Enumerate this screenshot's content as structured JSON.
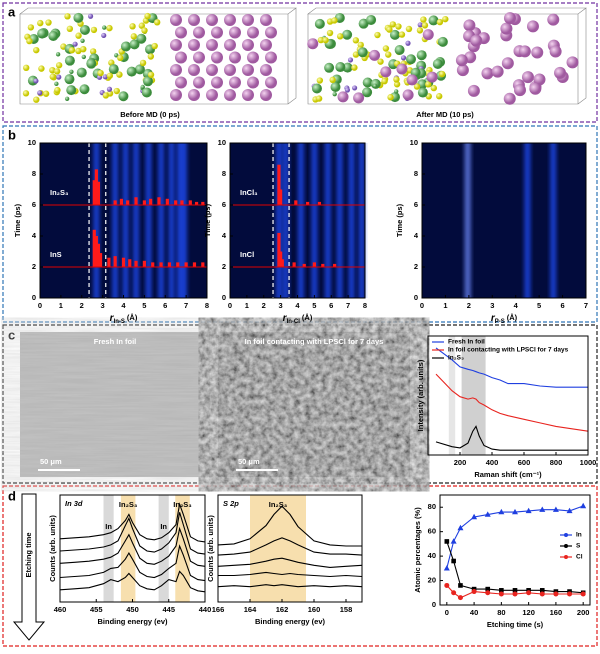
{
  "panels": {
    "a": {
      "label": "a",
      "captions": [
        "Before MD (0 ps)",
        "After MD (10 ps)"
      ]
    },
    "b": {
      "label": "b"
    },
    "c": {
      "label": "c",
      "images": [
        {
          "caption": "Fresh In foil",
          "scale": "50 μm"
        },
        {
          "caption": "In foil contacting with LPSCl for 7 days",
          "scale": "50 μm"
        }
      ]
    },
    "d": {
      "label": "d",
      "arrow": "Etching time"
    }
  },
  "chart_data": [
    {
      "type": "heatmap",
      "ylabel": "Time (ps)",
      "xlabel": {
        "symbol": "r",
        "sub": "In-S",
        "unit": "(Å)"
      },
      "xlim": [
        0,
        8
      ],
      "ylim": [
        0,
        10
      ],
      "xticks": [
        0,
        1,
        2,
        3,
        4,
        5,
        6,
        7,
        8
      ],
      "yticks": [
        0,
        2,
        4,
        6,
        8,
        10
      ],
      "density_peaks": [
        2.7,
        3.6,
        4.1,
        4.6,
        5.2,
        5.8,
        6.3,
        6.7,
        6.9
      ],
      "dashed_lines": [
        2.35,
        3.15
      ],
      "markers": [
        {
          "label": "In₂S₃",
          "time": 6,
          "bars": {
            "x": [
              2.6,
              2.7,
              2.8,
              3.6,
              3.9,
              4.2,
              4.6,
              5.0,
              5.3,
              5.7,
              6.1,
              6.5,
              6.8,
              7.2,
              7.5,
              7.8
            ],
            "heights": [
              1.6,
              2.3,
              1.5,
              0.3,
              0.4,
              0.3,
              0.5,
              0.3,
              0.4,
              0.5,
              0.4,
              0.3,
              0.3,
              0.3,
              0.2,
              0.2
            ]
          }
        },
        {
          "label": "InS",
          "time": 2,
          "bars": {
            "x": [
              2.6,
              2.7,
              2.8,
              2.9,
              3.3,
              3.6,
              4.0,
              4.3,
              4.6,
              5.0,
              5.4,
              5.8,
              6.2,
              6.6,
              7.0,
              7.4,
              7.8
            ],
            "heights": [
              2.4,
              2.0,
              1.5,
              0.9,
              0.6,
              0.7,
              0.6,
              0.5,
              0.4,
              0.4,
              0.3,
              0.3,
              0.3,
              0.3,
              0.3,
              0.3,
              0.3
            ]
          }
        }
      ]
    },
    {
      "type": "heatmap",
      "ylabel": "Time (ps)",
      "xlabel": {
        "symbol": "r",
        "sub": "In-Cl",
        "unit": "(Å)"
      },
      "xlim": [
        0,
        8
      ],
      "ylim": [
        0,
        10
      ],
      "xticks": [
        0,
        1,
        2,
        3,
        4,
        5,
        6,
        7,
        8
      ],
      "yticks": [
        0,
        2,
        4,
        6,
        8,
        10
      ],
      "density_peaks": [
        2.9,
        3.3,
        4.2,
        5.0,
        5.8,
        6.5,
        7.2,
        7.8
      ],
      "dashed_lines": [
        2.55,
        3.5
      ],
      "markers": [
        {
          "label": "InCl₃",
          "time": 6,
          "bars": {
            "x": [
              2.9,
              3.0,
              3.9,
              4.6,
              5.3
            ],
            "heights": [
              2.6,
              1.0,
              0.3,
              0.2,
              0.2
            ]
          }
        },
        {
          "label": "InCl",
          "time": 2,
          "bars": {
            "x": [
              2.9,
              3.0,
              3.1,
              3.8,
              4.4,
              5.0,
              5.5,
              6.2
            ],
            "heights": [
              2.2,
              1.0,
              0.5,
              0.3,
              0.2,
              0.3,
              0.2,
              0.2
            ]
          }
        }
      ]
    },
    {
      "type": "heatmap",
      "ylabel": "Time (ps)",
      "xlabel": {
        "symbol": "r",
        "sub": "P-S",
        "unit": "(Å)"
      },
      "xlim": [
        0,
        7
      ],
      "ylim": [
        0,
        10
      ],
      "xticks": [
        0,
        1,
        2,
        3,
        4,
        5,
        6,
        7
      ],
      "yticks": [
        0,
        2,
        4,
        6,
        8,
        10
      ],
      "density_peaks": [
        1.95,
        4.5,
        5.6
      ],
      "dashed_lines": [],
      "markers": []
    },
    {
      "type": "line",
      "xlabel": "Raman shift (cm⁻¹)",
      "ylabel": "Intensity (arb. units)",
      "xlim": [
        0,
        1000
      ],
      "ylim": [
        0,
        10
      ],
      "xticks": [
        200,
        400,
        600,
        800,
        1000
      ],
      "shaded": [
        {
          "range": [
            130,
            170
          ],
          "color": "#e6e6e6"
        },
        {
          "range": [
            210,
            360
          ],
          "color": "#d0d0d0"
        }
      ],
      "legend": "upper left",
      "x": [
        50,
        150,
        200,
        250,
        280,
        300,
        320,
        350,
        400,
        450,
        500,
        600,
        700,
        800,
        900,
        1000
      ],
      "series": [
        {
          "name": "Fresh In foil",
          "color": "#1f3fe0",
          "values": [
            9.0,
            8.0,
            7.4,
            7.2,
            7.1,
            7.0,
            6.9,
            6.8,
            6.5,
            6.3,
            6.0,
            6.0,
            5.8,
            5.7,
            5.7,
            5.7
          ]
        },
        {
          "name": "In foil contacting with LPSCl for 7 days",
          "color": "#e8241f",
          "values": [
            6.8,
            5.4,
            4.9,
            4.7,
            4.8,
            4.7,
            4.4,
            4.2,
            3.8,
            3.5,
            3.3,
            3.0,
            2.7,
            2.4,
            2.2,
            2.0
          ]
        },
        {
          "name": "In₂S₃",
          "color": "#000000",
          "values": [
            1.1,
            0.7,
            0.6,
            1.0,
            2.0,
            2.4,
            1.6,
            0.8,
            0.5,
            0.4,
            0.4,
            0.4,
            0.4,
            0.4,
            0.4,
            0.4
          ]
        }
      ]
    },
    {
      "type": "line",
      "title": "In 3d",
      "xlabel": "Binding energy (ev)",
      "ylabel": "Counts (arb. units)",
      "xlim": [
        460,
        440
      ],
      "ylim": [
        0,
        10.5
      ],
      "xticks": [
        460,
        455,
        450,
        445,
        440
      ],
      "shaded": [
        {
          "range": [
            454,
            452.6
          ],
          "color": "#d9d9d9",
          "label": "In"
        },
        {
          "range": [
            451.6,
            449.6
          ],
          "color": "#f7dfae",
          "label": "In₂S₃"
        },
        {
          "range": [
            446.4,
            445
          ],
          "color": "#d9d9d9",
          "label": "In"
        },
        {
          "range": [
            444.1,
            442.1
          ],
          "color": "#f7dfae",
          "label": "In₂S₃"
        }
      ],
      "x": [
        460,
        458,
        456,
        454,
        453,
        452,
        451,
        450.5,
        450,
        449,
        448,
        447,
        446,
        445,
        444,
        443.5,
        443,
        442,
        441,
        440
      ],
      "series": [
        {
          "color": "#000000",
          "values": [
            6.2,
            6.3,
            6.4,
            6.6,
            6.8,
            7.2,
            8.0,
            8.6,
            7.8,
            6.6,
            6.2,
            6.1,
            6.3,
            6.8,
            7.6,
            9.6,
            8.6,
            6.4,
            6.0,
            5.9
          ]
        },
        {
          "color": "#000000",
          "values": [
            5.0,
            5.1,
            5.2,
            5.4,
            5.6,
            6.0,
            7.5,
            8.2,
            7.2,
            5.5,
            5.0,
            4.9,
            5.2,
            5.8,
            6.8,
            8.8,
            7.6,
            5.2,
            4.8,
            4.7
          ]
        },
        {
          "color": "#000000",
          "values": [
            3.8,
            3.9,
            4.0,
            4.2,
            4.4,
            4.8,
            6.0,
            6.6,
            5.8,
            4.3,
            3.8,
            3.7,
            4.0,
            4.5,
            5.5,
            7.2,
            6.2,
            4.0,
            3.6,
            3.5
          ]
        },
        {
          "color": "#000000",
          "values": [
            2.4,
            2.5,
            2.6,
            2.9,
            3.3,
            3.4,
            4.2,
            4.8,
            4.2,
            2.9,
            2.5,
            2.4,
            2.7,
            3.3,
            3.8,
            5.5,
            4.6,
            2.6,
            2.2,
            2.1
          ]
        },
        {
          "color": "#000000",
          "values": [
            1.2,
            1.3,
            1.4,
            1.8,
            2.2,
            2.0,
            2.4,
            2.8,
            2.4,
            1.6,
            1.3,
            1.2,
            1.6,
            2.2,
            2.0,
            3.0,
            2.6,
            1.4,
            1.1,
            1.0
          ]
        }
      ]
    },
    {
      "type": "line",
      "title": "S 2p",
      "xlabel": "Binding energy (ev)",
      "ylabel": "Counts (arb. units)",
      "xlim": [
        166,
        157
      ],
      "ylim": [
        0,
        10.5
      ],
      "xticks": [
        166,
        164,
        162,
        160,
        158
      ],
      "shaded": [
        {
          "range": [
            164,
            160.5
          ],
          "color": "#f7dfae",
          "label": "In₂S₃"
        }
      ],
      "x": [
        166,
        165,
        164,
        163,
        162.5,
        162,
        161.5,
        161,
        160,
        159,
        158,
        157
      ],
      "series": [
        {
          "color": "#000000",
          "values": [
            5.6,
            5.7,
            6.2,
            7.5,
            8.6,
            9.4,
            8.6,
            7.4,
            6.0,
            5.6,
            5.5,
            5.5
          ]
        },
        {
          "color": "#000000",
          "values": [
            4.6,
            4.7,
            4.9,
            5.6,
            6.0,
            6.3,
            6.0,
            5.6,
            4.9,
            4.7,
            4.7,
            4.6
          ]
        },
        {
          "color": "#000000",
          "values": [
            3.5,
            3.6,
            3.7,
            4.0,
            4.2,
            4.3,
            4.1,
            3.9,
            3.6,
            3.4,
            3.5,
            3.6
          ]
        },
        {
          "color": "#000000",
          "values": [
            2.6,
            2.6,
            2.7,
            2.9,
            2.8,
            2.7,
            2.8,
            2.7,
            2.6,
            2.5,
            2.6,
            2.5
          ]
        },
        {
          "color": "#000000",
          "values": [
            1.5,
            1.6,
            1.5,
            1.7,
            1.6,
            1.7,
            1.6,
            1.5,
            1.6,
            1.5,
            1.6,
            1.5
          ]
        }
      ]
    },
    {
      "type": "line",
      "xlabel": "Etching time (s)",
      "ylabel": "Atomic percentages (%)",
      "xlim": [
        -10,
        210
      ],
      "ylim": [
        0,
        90
      ],
      "xticks": [
        0,
        40,
        80,
        120,
        160,
        200
      ],
      "yticks": [
        0,
        20,
        40,
        60,
        80
      ],
      "legend": "right",
      "x": [
        0,
        10,
        20,
        40,
        60,
        80,
        100,
        120,
        140,
        160,
        180,
        200
      ],
      "series": [
        {
          "name": "In",
          "color": "#1f3fe0",
          "marker": "triangle",
          "values": [
            30,
            52,
            63,
            72,
            74,
            76,
            76,
            77,
            78,
            78,
            77,
            81
          ]
        },
        {
          "name": "S",
          "color": "#000000",
          "marker": "square",
          "values": [
            52,
            36,
            16,
            13,
            13,
            12,
            12,
            12,
            12,
            11,
            11,
            10
          ]
        },
        {
          "name": "Cl",
          "color": "#e8241f",
          "marker": "circle",
          "values": [
            16,
            10,
            6,
            11,
            10,
            9,
            9,
            10,
            9,
            9,
            9,
            9
          ]
        }
      ]
    }
  ]
}
